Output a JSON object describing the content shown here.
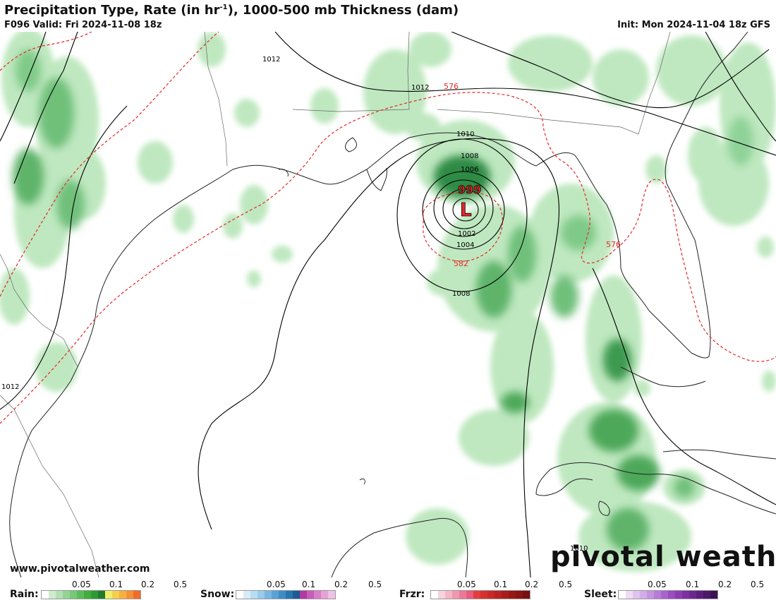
{
  "header": {
    "title_main": "Precipitation Type, Rate (in hr",
    "title_sup": "-1",
    "title_rest": "), 1000-500 mb Thickness (dam)",
    "valid": "F096 Valid: Fri 2024-11-08 18z",
    "init": "Init: Mon 2024-11-04 18z GFS"
  },
  "map": {
    "isobar_labels": [
      "1012",
      "1012",
      "1010",
      "1008",
      "1006",
      "1002",
      "1004",
      "1008",
      "1012",
      "1010"
    ],
    "thickness_labels": [
      "576",
      "576",
      "582"
    ],
    "low_center": {
      "pressure": "999",
      "symbol": "L"
    },
    "colors": {
      "isobar": "#000000",
      "thickness": "#e8262a",
      "rain_light": "#b9e6b9",
      "rain_mid": "#6fc07a",
      "rain_heavy": "#2e8b45",
      "low": "#e8262a"
    }
  },
  "footer": {
    "url": "www.pivotalweather.com",
    "logo": "pivotal weather"
  },
  "legend": {
    "rain": {
      "label": "Rain:",
      "ticks": [
        "0.05",
        "0.1",
        "0.2",
        "0.5"
      ],
      "colors": [
        "#ffffff",
        "#cfeccf",
        "#b2e0b2",
        "#95d495",
        "#78c878",
        "#5bbb5b",
        "#3fae3f",
        "#2e9a35",
        "#1f7d2a",
        "#f0ef6a",
        "#f5d04a",
        "#f7b040",
        "#f59035",
        "#f36b2a"
      ]
    },
    "snow": {
      "label": "Snow:",
      "ticks": [
        "0.05",
        "0.1",
        "0.2",
        "0.5"
      ],
      "colors": [
        "#ffffff",
        "#d6ecf8",
        "#b8dcf2",
        "#98caea",
        "#78b6e0",
        "#5aa2d4",
        "#3e8cc6",
        "#2874b0",
        "#1c5b94",
        "#b03aa0",
        "#c95cb8",
        "#d880c8",
        "#e4a2d6",
        "#eec2e4"
      ]
    },
    "frzr": {
      "label": "Frzr:",
      "ticks": [
        "0.05",
        "0.1",
        "0.2",
        "0.5"
      ],
      "colors": [
        "#ffffff",
        "#f8d2dc",
        "#f4b6c6",
        "#f098ae",
        "#ec7a96",
        "#e85c7e",
        "#e23e3e",
        "#d63030",
        "#c82828",
        "#b82222",
        "#a81c1c",
        "#981818",
        "#881414",
        "#781010"
      ]
    },
    "sleet": {
      "label": "Sleet:",
      "ticks": [
        "0.05",
        "0.1",
        "0.2",
        "0.5"
      ],
      "colors": [
        "#ffffff",
        "#eedcf4",
        "#e0c4ee",
        "#d2ace6",
        "#c494de",
        "#b67cd6",
        "#a864cc",
        "#9a4cc0",
        "#8c3cb0",
        "#7c30a0",
        "#6c2690",
        "#5c1e7c",
        "#4c1868",
        "#3c1254"
      ]
    }
  }
}
